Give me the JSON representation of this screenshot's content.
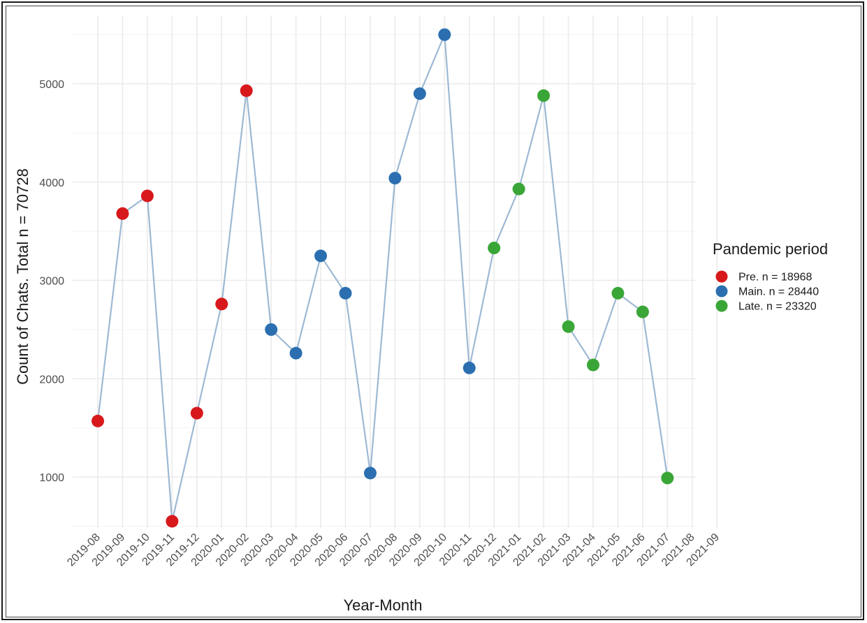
{
  "chart_data": {
    "type": "line",
    "xlabel": "Year-Month",
    "ylabel": "Count of Chats. Total n = 70728",
    "categories": [
      "2019-08",
      "2019-09",
      "2019-10",
      "2019-11",
      "2019-12",
      "2020-01",
      "2020-02",
      "2020-03",
      "2020-04",
      "2020-05",
      "2020-06",
      "2020-07",
      "2020-08",
      "2020-09",
      "2020-10",
      "2020-11",
      "2020-12",
      "2021-01",
      "2021-02",
      "2021-03",
      "2021-04",
      "2021-05",
      "2021-06",
      "2021-07",
      "2021-08",
      "2021-09"
    ],
    "yticks": [
      1000,
      2000,
      3000,
      4000,
      5000
    ],
    "ylim": [
      380,
      5640
    ],
    "grid": true,
    "line_color": "#9eb9d4",
    "legend": {
      "title": "Pandemic period",
      "placement": "right",
      "entries": [
        {
          "label": "Pre. n = 18968",
          "color": "#d7191c"
        },
        {
          "label": "Main. n = 28440",
          "color": "#2c6fb0"
        },
        {
          "label": "Late. n = 23320",
          "color": "#3aa637"
        }
      ]
    },
    "series": [
      {
        "name": "Pre. n = 18968",
        "color": "#d7191c",
        "points": [
          [
            "2019-08",
            1570
          ],
          [
            "2019-09",
            3680
          ],
          [
            "2019-10",
            3860
          ],
          [
            "2019-11",
            550
          ],
          [
            "2019-12",
            1650
          ],
          [
            "2020-01",
            2760
          ],
          [
            "2020-02",
            4930
          ]
        ]
      },
      {
        "name": "Main. n = 28440",
        "color": "#2c6fb0",
        "points": [
          [
            "2020-03",
            2500
          ],
          [
            "2020-04",
            2260
          ],
          [
            "2020-05",
            3250
          ],
          [
            "2020-06",
            2870
          ],
          [
            "2020-07",
            1040
          ],
          [
            "2020-08",
            4040
          ],
          [
            "2020-09",
            4900
          ],
          [
            "2020-10",
            5500
          ],
          [
            "2020-11",
            2110
          ]
        ]
      },
      {
        "name": "Late. n = 23320",
        "color": "#3aa637",
        "points": [
          [
            "2020-12",
            3330
          ],
          [
            "2021-01",
            3930
          ],
          [
            "2021-02",
            4880
          ],
          [
            "2021-03",
            2530
          ],
          [
            "2021-04",
            2140
          ],
          [
            "2021-05",
            2870
          ],
          [
            "2021-06",
            2680
          ],
          [
            "2021-07",
            990
          ]
        ]
      }
    ]
  }
}
